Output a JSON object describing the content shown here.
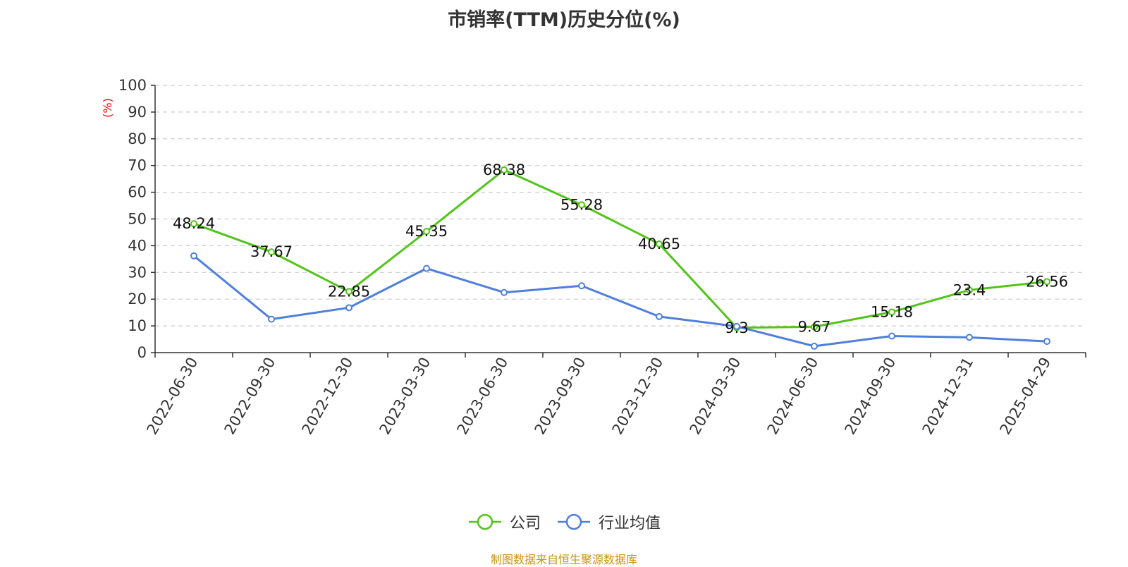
{
  "chart_data": {
    "type": "line",
    "title": "市销率(TTM)历史分位(%)",
    "ylabel": "(%)",
    "xlabel": "",
    "ylim": [
      0,
      100
    ],
    "yticks": [
      0,
      10,
      20,
      30,
      40,
      50,
      60,
      70,
      80,
      90,
      100
    ],
    "grid": true,
    "legend_position": "bottom",
    "categories": [
      "2022-06-30",
      "2022-09-30",
      "2022-12-30",
      "2023-03-30",
      "2023-06-30",
      "2023-09-30",
      "2023-12-30",
      "2024-03-30",
      "2024-06-30",
      "2024-09-30",
      "2024-12-31",
      "2025-04-29"
    ],
    "series": [
      {
        "name": "公司",
        "color": "#52c41a",
        "values": [
          48.24,
          37.67,
          22.85,
          45.35,
          68.38,
          55.28,
          40.65,
          9.3,
          9.67,
          15.18,
          23.4,
          26.56
        ],
        "labels": [
          "48.24",
          "37.67",
          "22.85",
          "45.35",
          "68.38",
          "55.28",
          "40.65",
          "9.3",
          "9.67",
          "15.18",
          "23.4",
          "26.56"
        ]
      },
      {
        "name": "行业均值",
        "color": "#4e7fdc",
        "values": [
          36.2,
          12.5,
          16.8,
          31.5,
          22.5,
          25.0,
          13.5,
          9.8,
          2.4,
          6.2,
          5.7,
          4.2
        ]
      }
    ],
    "source": "制图数据来自恒生聚源数据库"
  }
}
